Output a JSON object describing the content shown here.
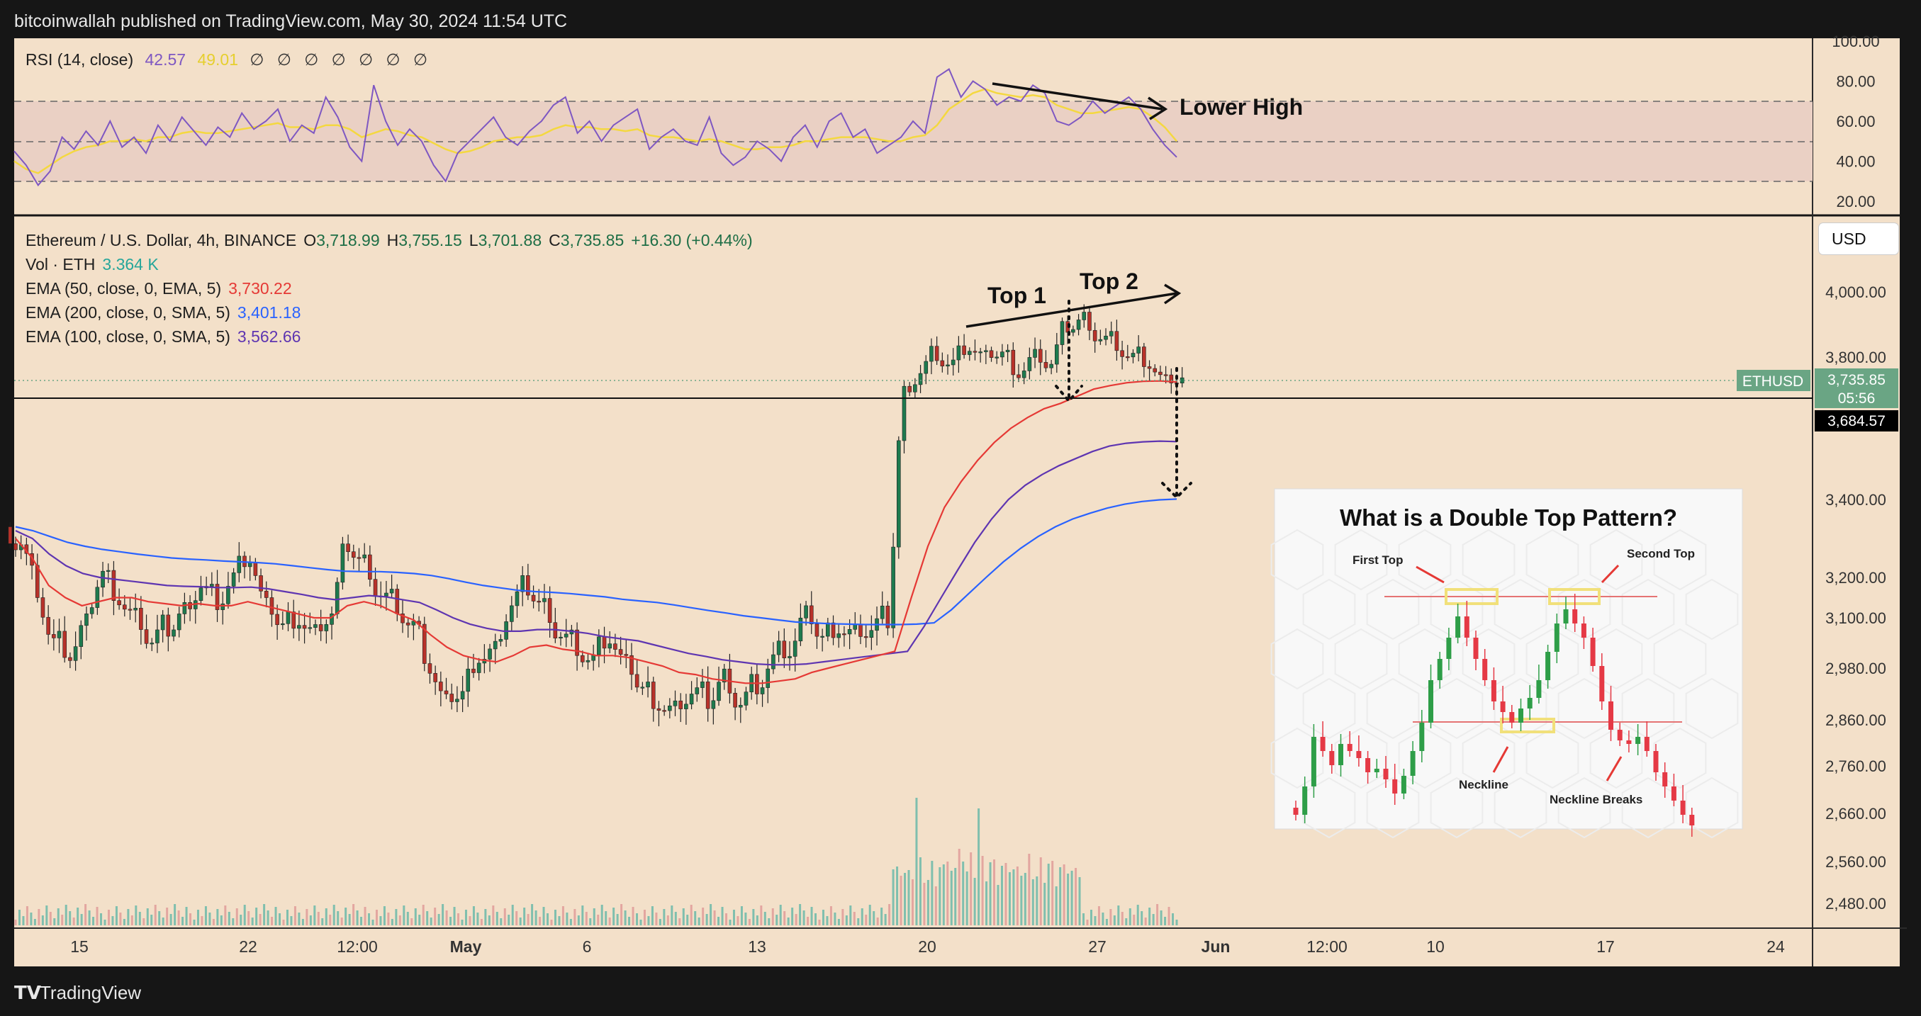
{
  "header": {
    "publisher": "bitcoinwallah published on TradingView.com, May 30, 2024 11:54 UTC"
  },
  "footer": {
    "brand": "TradingView"
  },
  "colors": {
    "background": "#f3e0c9",
    "frame": "#161616",
    "up": "#1e7a4e",
    "down": "#b8322a",
    "rsi": "#7e57c2",
    "rsi_ma": "#f4d840",
    "ema50": "#e53935",
    "ema200": "#2962ff",
    "ema100": "#5e35b1",
    "vol_up": "#7fbfae",
    "vol_down": "#e3a6a0",
    "price_tag": "#6aa584",
    "level_tag": "#000000"
  },
  "rsi_legend": {
    "name": "RSI (14, close)",
    "value": "42.57",
    "ma_value": "49.01",
    "na": "∅ ∅ ∅ ∅ ∅ ∅ ∅"
  },
  "main_legend": {
    "symbol": "Ethereum / U.S. Dollar, 4h, BINANCE",
    "o_label": "O",
    "open": "3,718.99",
    "h_label": "H",
    "high": "3,755.15",
    "l_label": "L",
    "low": "3,701.88",
    "c_label": "C",
    "close": "3,735.85",
    "change": "+16.30 (+0.44%)",
    "vol_label": "Vol · ETH",
    "vol_value": "3.364 K",
    "ema50_label": "EMA (50, close, 0, EMA, 5)",
    "ema50_value": "3,730.22",
    "ema200_label": "EMA (200, close, 0, SMA, 5)",
    "ema200_value": "3,401.18",
    "ema100_label": "EMA (100, close, 0, SMA, 5)",
    "ema100_value": "3,562.66"
  },
  "currency_button": "USD",
  "price_tag": {
    "symbol": "ETHUSD",
    "price": "3,735.85",
    "countdown": "05:56"
  },
  "level_tag": "3,684.57",
  "annotations": {
    "top1": "Top 1",
    "top2": "Top 2",
    "lower_high": "Lower High"
  },
  "inset": {
    "title": "What is a Double Top Pattern?",
    "first_top": "First Top",
    "second_top": "Second Top",
    "neckline": "Neckline",
    "neckline_breaks": "Neckline Breaks"
  },
  "chart_data": [
    {
      "type": "line",
      "name": "RSI (14, close)",
      "y_ticks": [
        "100.00",
        "80.00",
        "60.00",
        "40.00",
        "20.00"
      ],
      "ylim": [
        20,
        100
      ],
      "bands": [
        30,
        50,
        70
      ],
      "rsi_values": [
        45,
        38,
        28,
        35,
        52,
        46,
        55,
        48,
        60,
        47,
        52,
        44,
        58,
        50,
        62,
        55,
        48,
        57,
        52,
        64,
        56,
        60,
        66,
        50,
        58,
        54,
        72,
        62,
        47,
        40,
        78,
        60,
        48,
        56,
        50,
        38,
        30,
        44,
        50,
        56,
        62,
        52,
        48,
        55,
        60,
        68,
        72,
        54,
        60,
        50,
        58,
        62,
        66,
        46,
        52,
        56,
        50,
        48,
        62,
        44,
        38,
        42,
        50,
        46,
        40,
        52,
        58,
        47,
        60,
        64,
        52,
        56,
        44,
        48,
        52,
        60,
        54,
        82,
        86,
        72,
        80,
        76,
        68,
        72,
        70,
        78,
        74,
        60,
        58,
        62,
        70,
        64,
        68,
        72,
        66,
        56,
        48,
        42
      ],
      "rsi_ma_values": [
        40,
        36,
        34,
        38,
        42,
        45,
        47,
        48,
        50,
        50,
        51,
        50,
        52,
        52,
        54,
        55,
        54,
        54,
        55,
        56,
        57,
        58,
        59,
        57,
        57,
        56,
        58,
        58,
        56,
        52,
        54,
        56,
        55,
        53,
        52,
        49,
        46,
        44,
        45,
        47,
        50,
        51,
        52,
        52,
        53,
        56,
        58,
        57,
        57,
        56,
        56,
        55,
        56,
        53,
        52,
        52,
        51,
        50,
        51,
        50,
        48,
        46,
        46,
        47,
        47,
        48,
        50,
        50,
        51,
        52,
        52,
        52,
        51,
        50,
        50,
        52,
        53,
        58,
        66,
        70,
        74,
        76,
        74,
        73,
        72,
        73,
        72,
        68,
        66,
        64,
        64,
        65,
        66,
        67,
        66,
        62,
        57,
        50
      ]
    },
    {
      "type": "candlestick",
      "name": "Ethereum / U.S. Dollar, 4h, BINANCE",
      "x_ticks": [
        "15",
        "22",
        "12:00",
        "May",
        "6",
        "13",
        "20",
        "27",
        "Jun",
        "12:00",
        "10",
        "17",
        "24"
      ],
      "y_ticks": [
        "4,000.00",
        "3,800.00",
        "3,400.00",
        "3,200.00",
        "3,100.00",
        "2,980.00",
        "2,860.00",
        "2,760.00",
        "2,660.00",
        "2,560.00",
        "2,480.00"
      ],
      "close_path": [
        3290,
        3180,
        3040,
        3010,
        3080,
        3210,
        3150,
        3100,
        3040,
        3080,
        3120,
        3180,
        3150,
        3200,
        3250,
        3120,
        3080,
        3100,
        3060,
        3110,
        3290,
        3240,
        3160,
        3140,
        3080,
        2980,
        2890,
        2920,
        3010,
        3020,
        3130,
        3180,
        3130,
        3060,
        3040,
        3000,
        3050,
        2980,
        2930,
        2900,
        2880,
        2920,
        2910,
        2960,
        2900,
        2950,
        3000,
        3020,
        3100,
        3050,
        3080,
        3060,
        3070,
        3100,
        3700,
        3760,
        3820,
        3780,
        3830,
        3790,
        3810,
        3760,
        3800,
        3780,
        3900,
        3920,
        3860,
        3850,
        3800,
        3780,
        3720,
        3735.85
      ],
      "ema50": [
        3300,
        3250,
        3180,
        3150,
        3130,
        3140,
        3150,
        3150,
        3140,
        3135,
        3130,
        3135,
        3130,
        3130,
        3140,
        3130,
        3120,
        3110,
        3100,
        3100,
        3130,
        3140,
        3130,
        3110,
        3095,
        3060,
        3030,
        3010,
        3000,
        2995,
        3010,
        3030,
        3035,
        3025,
        3020,
        3010,
        3010,
        3005,
        2995,
        2985,
        2970,
        2965,
        2955,
        2950,
        2945,
        2945,
        2950,
        2955,
        2970,
        2980,
        2990,
        3000,
        3010,
        3020,
        3150,
        3280,
        3380,
        3450,
        3510,
        3560,
        3600,
        3630,
        3655,
        3670,
        3690,
        3710,
        3720,
        3728,
        3732,
        3733,
        3730.22
      ],
      "ema100": [
        3320,
        3300,
        3260,
        3230,
        3210,
        3200,
        3195,
        3190,
        3185,
        3180,
        3178,
        3177,
        3175,
        3175,
        3176,
        3172,
        3165,
        3158,
        3150,
        3145,
        3150,
        3155,
        3152,
        3145,
        3138,
        3120,
        3100,
        3085,
        3075,
        3068,
        3068,
        3072,
        3072,
        3068,
        3063,
        3055,
        3050,
        3045,
        3035,
        3025,
        3015,
        3008,
        3000,
        2995,
        2990,
        2988,
        2988,
        2990,
        2995,
        3000,
        3005,
        3010,
        3015,
        3020,
        3080,
        3150,
        3220,
        3290,
        3350,
        3400,
        3440,
        3470,
        3495,
        3515,
        3535,
        3550,
        3558,
        3562,
        3564,
        3562.66
      ],
      "ema200": [
        3330,
        3320,
        3305,
        3290,
        3280,
        3272,
        3266,
        3260,
        3255,
        3250,
        3247,
        3245,
        3242,
        3240,
        3238,
        3235,
        3230,
        3225,
        3220,
        3216,
        3215,
        3215,
        3213,
        3210,
        3205,
        3197,
        3188,
        3180,
        3174,
        3168,
        3165,
        3163,
        3160,
        3156,
        3152,
        3146,
        3142,
        3138,
        3132,
        3125,
        3118,
        3112,
        3105,
        3100,
        3095,
        3090,
        3088,
        3086,
        3085,
        3084,
        3084,
        3084,
        3085,
        3088,
        3120,
        3160,
        3200,
        3240,
        3275,
        3305,
        3330,
        3350,
        3365,
        3378,
        3388,
        3395,
        3399,
        3401.18
      ],
      "volume_note": "volume bars at bottom of main pane, largest spike around 20–23 May"
    }
  ]
}
